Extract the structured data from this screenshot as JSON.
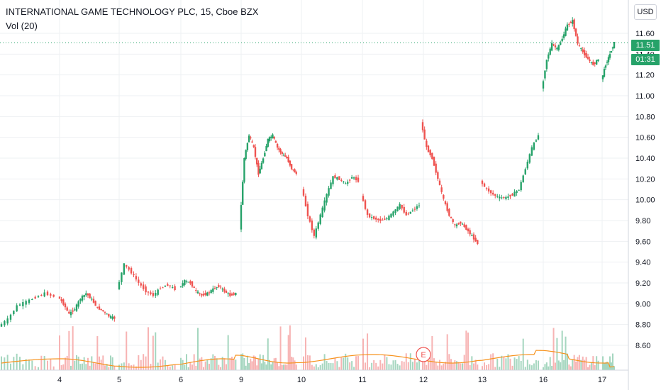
{
  "header": {
    "title": "INTERNATIONAL GAME TECHNOLOGY PLC, 15, Cboe BZX",
    "indicator": "Vol (20)",
    "currency_button": "USD"
  },
  "price_tags": {
    "last_price": "11.51",
    "countdown": "01:31"
  },
  "earnings_marker": "E",
  "colors": {
    "up": "#26a269",
    "down": "#ef5350",
    "vol_up": "#a5d6bf",
    "vol_down": "#f7b3b3",
    "vol_ma": "#f7931e",
    "grid": "#eef0f3",
    "axis_line": "#d1d4dc",
    "tag_bg": "#26a269"
  },
  "chart_data": {
    "type": "candlestick",
    "title": "INTERNATIONAL GAME TECHNOLOGY PLC, 15, Cboe BZX",
    "y_ticks": [
      "11.60",
      "11.40",
      "11.20",
      "11.00",
      "10.80",
      "10.60",
      "10.40",
      "10.20",
      "10.00",
      "9.80",
      "9.60",
      "9.40",
      "9.20",
      "9.00",
      "8.80",
      "8.60"
    ],
    "y_range": [
      8.59,
      11.77
    ],
    "x_ticks": [
      "4",
      "5",
      "6",
      "9",
      "10",
      "11",
      "12",
      "13",
      "16",
      "17"
    ],
    "grid": true,
    "indicator": "Vol (20)",
    "segments": [
      {
        "day": "3 (partial)",
        "ohlc_path": [
          8.78,
          8.85,
          8.98,
          9.02,
          9.06,
          9.1,
          9.07
        ]
      },
      {
        "day": "4",
        "ohlc_path": [
          9.07,
          9.0,
          8.9,
          8.95,
          9.05,
          9.1,
          9.04,
          8.96,
          8.93,
          8.88,
          8.86
        ]
      },
      {
        "day": "5",
        "ohlc_path": [
          9.13,
          9.38,
          9.3,
          9.2,
          9.12,
          9.08,
          9.15,
          9.18,
          9.14
        ]
      },
      {
        "day": "6",
        "ohlc_path": [
          9.15,
          9.22,
          9.2,
          9.12,
          9.08,
          9.1,
          9.14,
          9.17,
          9.12,
          9.08,
          9.1
        ]
      },
      {
        "day": "9",
        "ohlc_path": [
          9.72,
          10.4,
          10.62,
          10.5,
          10.25,
          10.4,
          10.58,
          10.62,
          10.5,
          10.44,
          10.4,
          10.3,
          10.25
        ]
      },
      {
        "day": "10",
        "ohlc_path": [
          10.12,
          9.85,
          9.65,
          9.85,
          10.05,
          10.22,
          10.2,
          10.15,
          10.22,
          10.18
        ]
      },
      {
        "day": "11",
        "ohlc_path": [
          10.05,
          9.85,
          9.82,
          9.8,
          9.82,
          9.88,
          9.95,
          9.85,
          9.9,
          9.95
        ]
      },
      {
        "day": "12",
        "ohlc_path": [
          10.75,
          10.5,
          10.4,
          10.2,
          10.0,
          9.85,
          9.75,
          9.78,
          9.72,
          9.65,
          9.58
        ]
      },
      {
        "day": "12 (late)",
        "ohlc_path": [
          10.18,
          10.1,
          10.05,
          10.02,
          10.02,
          10.05,
          10.1,
          10.3,
          10.5,
          10.62
        ]
      },
      {
        "day": "16",
        "ohlc_path": [
          11.05,
          11.35,
          11.5,
          11.45,
          11.55,
          11.68,
          11.72,
          11.5,
          11.42,
          11.35,
          11.3,
          11.35
        ]
      },
      {
        "day": "17",
        "ohlc_path": [
          11.15,
          11.3,
          11.4,
          11.51
        ]
      }
    ],
    "last_price": 11.51
  }
}
